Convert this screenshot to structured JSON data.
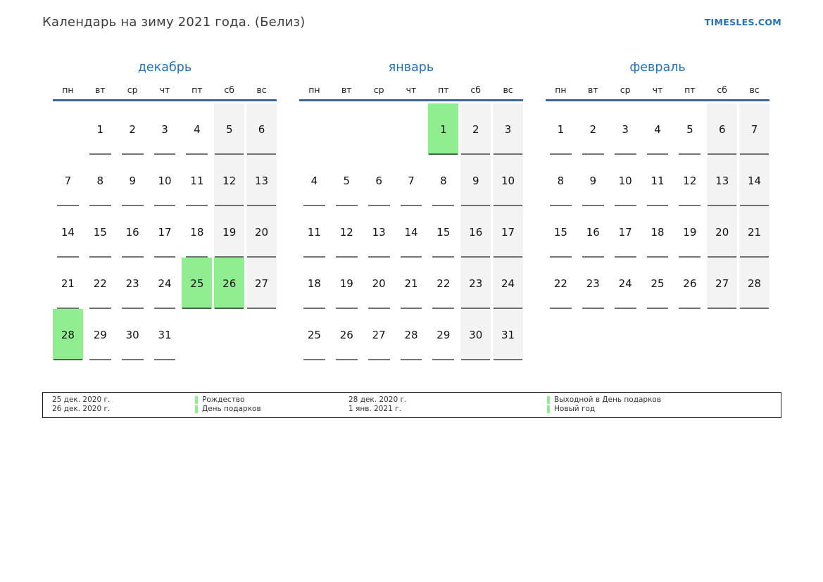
{
  "page": {
    "title": "Календарь на зиму 2021 года. (Белиз)",
    "site_link": "TIMESLES.COM"
  },
  "calendar": {
    "weekdays": [
      "пн",
      "вт",
      "ср",
      "чт",
      "пт",
      "сб",
      "вс"
    ],
    "months": [
      {
        "name": "декабрь",
        "holidays": [
          25,
          26,
          28
        ],
        "weeks": [
          [
            null,
            1,
            2,
            3,
            4,
            5,
            6
          ],
          [
            7,
            8,
            9,
            10,
            11,
            12,
            13
          ],
          [
            14,
            15,
            16,
            17,
            18,
            19,
            20
          ],
          [
            21,
            22,
            23,
            24,
            25,
            26,
            27
          ],
          [
            28,
            29,
            30,
            31,
            null,
            null,
            null
          ]
        ]
      },
      {
        "name": "январь",
        "holidays": [
          1
        ],
        "weeks": [
          [
            null,
            null,
            null,
            null,
            1,
            2,
            3
          ],
          [
            4,
            5,
            6,
            7,
            8,
            9,
            10
          ],
          [
            11,
            12,
            13,
            14,
            15,
            16,
            17
          ],
          [
            18,
            19,
            20,
            21,
            22,
            23,
            24
          ],
          [
            25,
            26,
            27,
            28,
            29,
            30,
            31
          ]
        ]
      },
      {
        "name": "февраль",
        "holidays": [],
        "weeks": [
          [
            1,
            2,
            3,
            4,
            5,
            6,
            7
          ],
          [
            8,
            9,
            10,
            11,
            12,
            13,
            14
          ],
          [
            15,
            16,
            17,
            18,
            19,
            20,
            21
          ],
          [
            22,
            23,
            24,
            25,
            26,
            27,
            28
          ]
        ]
      }
    ]
  },
  "legend": {
    "entries": [
      {
        "dates": [
          "25 дек. 2020 г.",
          "26 дек. 2020 г."
        ],
        "names": [
          "Рождество",
          "День подарков"
        ]
      },
      {
        "dates": [
          "28 дек. 2020 г.",
          "1 янв. 2021 г."
        ],
        "names": [
          "Выходной в День подарков",
          "Новый год"
        ]
      }
    ]
  },
  "colors": {
    "holiday_green": "#90ee90",
    "weekend_gray": "#f3f3f3",
    "accent_blue": "#2373b9",
    "header_rule_blue": "#3c6494"
  }
}
